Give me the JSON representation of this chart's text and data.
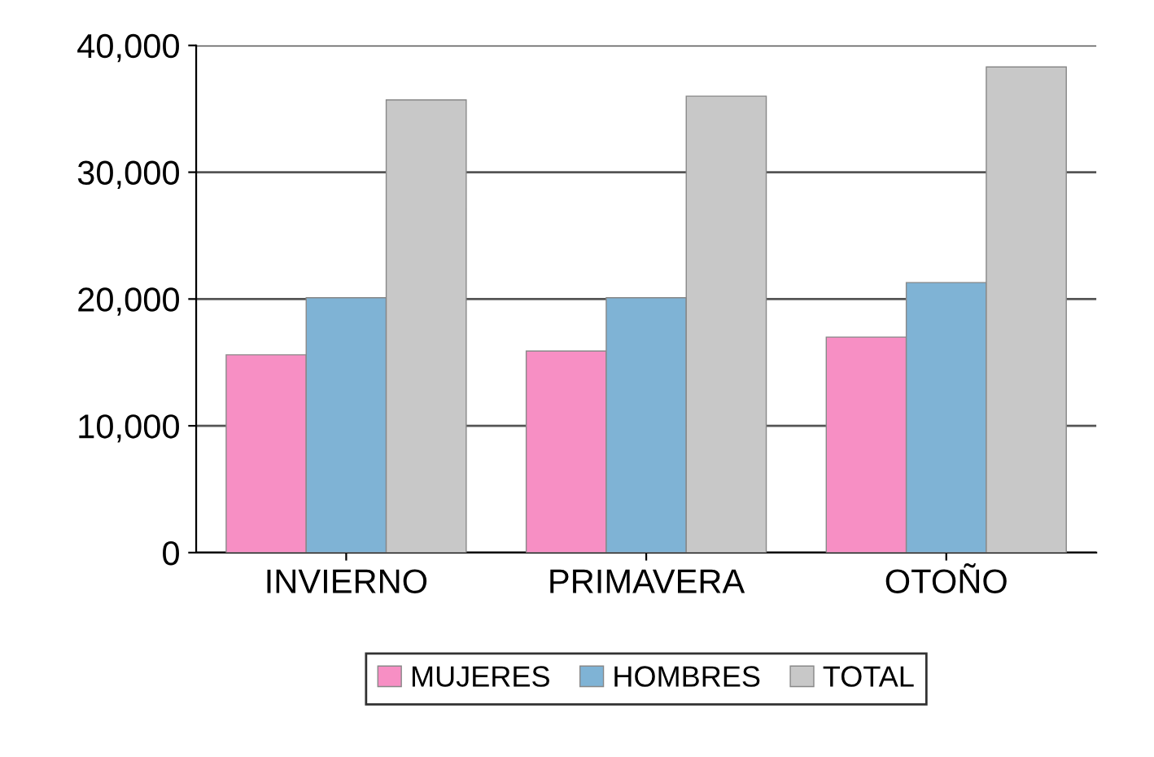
{
  "chart_data": {
    "type": "bar",
    "categories": [
      "INVIERNO",
      "PRIMAVERA",
      "OTOÑO"
    ],
    "series": [
      {
        "name": "MUJERES",
        "color": "#f78fc4",
        "values": [
          15600,
          15900,
          17000
        ]
      },
      {
        "name": "HOMBRES",
        "color": "#7fb3d5",
        "values": [
          20100,
          20100,
          21300
        ]
      },
      {
        "name": "TOTAL",
        "color": "#c8c8c8",
        "values": [
          35700,
          36000,
          38300
        ]
      }
    ],
    "ylim": [
      0,
      40000
    ],
    "yticks": [
      {
        "value": 0,
        "label": "0"
      },
      {
        "value": 10000,
        "label": "10,000"
      },
      {
        "value": 20000,
        "label": "20,000"
      },
      {
        "value": 30000,
        "label": "30,000"
      },
      {
        "value": 40000,
        "label": "40,000"
      }
    ],
    "grid": "y",
    "legend": "bottom"
  }
}
